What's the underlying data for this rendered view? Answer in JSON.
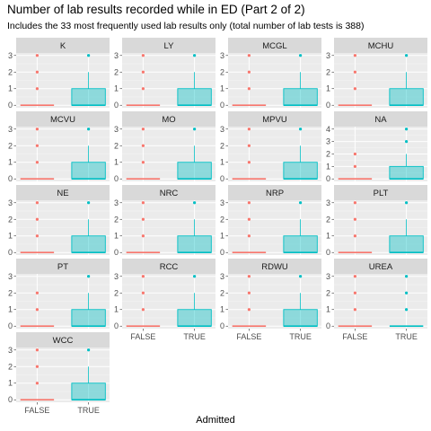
{
  "title": "Number of lab results recorded while in ED (Part 2 of 2)",
  "subtitle": "Includes the 33 most frequently used lab results only (total number of lab tests is 388)",
  "chart_data": {
    "type": "boxplot",
    "xlabel": "Admitted",
    "ylabel": "",
    "categories": [
      "FALSE",
      "TRUE"
    ],
    "colors": {
      "FALSE": "#F8766D",
      "TRUE": "#00BFC4"
    },
    "grid": true,
    "legend": "none",
    "facets": [
      {
        "label": "K",
        "ylim": [
          0,
          3
        ],
        "yticks": [
          0,
          1,
          2,
          3
        ],
        "boxes": [
          {
            "group": "FALSE",
            "q1": 0,
            "median": 0,
            "q3": 0,
            "whisker_low": 0,
            "whisker_high": 0,
            "outliers": [
              1,
              2,
              3
            ]
          },
          {
            "group": "TRUE",
            "q1": 0,
            "median": 0,
            "q3": 1,
            "whisker_low": 0,
            "whisker_high": 2,
            "outliers": [
              3
            ]
          }
        ]
      },
      {
        "label": "LY",
        "ylim": [
          0,
          3
        ],
        "yticks": [
          0,
          1,
          2,
          3
        ],
        "boxes": [
          {
            "group": "FALSE",
            "q1": 0,
            "median": 0,
            "q3": 0,
            "whisker_low": 0,
            "whisker_high": 0,
            "outliers": [
              1,
              2,
              3
            ]
          },
          {
            "group": "TRUE",
            "q1": 0,
            "median": 0,
            "q3": 1,
            "whisker_low": 0,
            "whisker_high": 2,
            "outliers": [
              3
            ]
          }
        ]
      },
      {
        "label": "MCGL",
        "ylim": [
          0,
          3
        ],
        "yticks": [
          0,
          1,
          2,
          3
        ],
        "boxes": [
          {
            "group": "FALSE",
            "q1": 0,
            "median": 0,
            "q3": 0,
            "whisker_low": 0,
            "whisker_high": 0,
            "outliers": [
              1,
              2,
              3
            ]
          },
          {
            "group": "TRUE",
            "q1": 0,
            "median": 0,
            "q3": 1,
            "whisker_low": 0,
            "whisker_high": 2,
            "outliers": [
              3
            ]
          }
        ]
      },
      {
        "label": "MCHU",
        "ylim": [
          0,
          3
        ],
        "yticks": [
          0,
          1,
          2,
          3
        ],
        "boxes": [
          {
            "group": "FALSE",
            "q1": 0,
            "median": 0,
            "q3": 0,
            "whisker_low": 0,
            "whisker_high": 0,
            "outliers": [
              1,
              2,
              3
            ]
          },
          {
            "group": "TRUE",
            "q1": 0,
            "median": 0,
            "q3": 1,
            "whisker_low": 0,
            "whisker_high": 2,
            "outliers": [
              3
            ]
          }
        ]
      },
      {
        "label": "MCVU",
        "ylim": [
          0,
          3
        ],
        "yticks": [
          0,
          1,
          2,
          3
        ],
        "boxes": [
          {
            "group": "FALSE",
            "q1": 0,
            "median": 0,
            "q3": 0,
            "whisker_low": 0,
            "whisker_high": 0,
            "outliers": [
              1,
              2,
              3
            ]
          },
          {
            "group": "TRUE",
            "q1": 0,
            "median": 0,
            "q3": 1,
            "whisker_low": 0,
            "whisker_high": 2,
            "outliers": [
              3
            ]
          }
        ]
      },
      {
        "label": "MO",
        "ylim": [
          0,
          3
        ],
        "yticks": [
          0,
          1,
          2,
          3
        ],
        "boxes": [
          {
            "group": "FALSE",
            "q1": 0,
            "median": 0,
            "q3": 0,
            "whisker_low": 0,
            "whisker_high": 0,
            "outliers": [
              1,
              2,
              3
            ]
          },
          {
            "group": "TRUE",
            "q1": 0,
            "median": 0,
            "q3": 1,
            "whisker_low": 0,
            "whisker_high": 2,
            "outliers": [
              3
            ]
          }
        ]
      },
      {
        "label": "MPVU",
        "ylim": [
          0,
          3
        ],
        "yticks": [
          0,
          1,
          2,
          3
        ],
        "boxes": [
          {
            "group": "FALSE",
            "q1": 0,
            "median": 0,
            "q3": 0,
            "whisker_low": 0,
            "whisker_high": 0,
            "outliers": [
              1,
              2,
              3
            ]
          },
          {
            "group": "TRUE",
            "q1": 0,
            "median": 0,
            "q3": 1,
            "whisker_low": 0,
            "whisker_high": 2,
            "outliers": [
              3
            ]
          }
        ]
      },
      {
        "label": "NA",
        "ylim": [
          0,
          4
        ],
        "yticks": [
          0,
          1,
          2,
          3,
          4
        ],
        "boxes": [
          {
            "group": "FALSE",
            "q1": 0,
            "median": 0,
            "q3": 0,
            "whisker_low": 0,
            "whisker_high": 0,
            "outliers": [
              1,
              2
            ]
          },
          {
            "group": "TRUE",
            "q1": 0,
            "median": 0,
            "q3": 1,
            "whisker_low": 0,
            "whisker_high": 2,
            "outliers": [
              3,
              4
            ]
          }
        ]
      },
      {
        "label": "NE",
        "ylim": [
          0,
          3
        ],
        "yticks": [
          0,
          1,
          2,
          3
        ],
        "boxes": [
          {
            "group": "FALSE",
            "q1": 0,
            "median": 0,
            "q3": 0,
            "whisker_low": 0,
            "whisker_high": 0,
            "outliers": [
              1,
              2,
              3
            ]
          },
          {
            "group": "TRUE",
            "q1": 0,
            "median": 0,
            "q3": 1,
            "whisker_low": 0,
            "whisker_high": 2,
            "outliers": [
              3
            ]
          }
        ]
      },
      {
        "label": "NRC",
        "ylim": [
          0,
          3
        ],
        "yticks": [
          0,
          1,
          2,
          3
        ],
        "boxes": [
          {
            "group": "FALSE",
            "q1": 0,
            "median": 0,
            "q3": 0,
            "whisker_low": 0,
            "whisker_high": 0,
            "outliers": [
              1,
              2,
              3
            ]
          },
          {
            "group": "TRUE",
            "q1": 0,
            "median": 0,
            "q3": 1,
            "whisker_low": 0,
            "whisker_high": 2,
            "outliers": [
              3
            ]
          }
        ]
      },
      {
        "label": "NRP",
        "ylim": [
          0,
          3
        ],
        "yticks": [
          0,
          1,
          2,
          3
        ],
        "boxes": [
          {
            "group": "FALSE",
            "q1": 0,
            "median": 0,
            "q3": 0,
            "whisker_low": 0,
            "whisker_high": 0,
            "outliers": [
              1,
              2,
              3
            ]
          },
          {
            "group": "TRUE",
            "q1": 0,
            "median": 0,
            "q3": 1,
            "whisker_low": 0,
            "whisker_high": 2,
            "outliers": [
              3
            ]
          }
        ]
      },
      {
        "label": "PLT",
        "ylim": [
          0,
          3
        ],
        "yticks": [
          0,
          1,
          2,
          3
        ],
        "boxes": [
          {
            "group": "FALSE",
            "q1": 0,
            "median": 0,
            "q3": 0,
            "whisker_low": 0,
            "whisker_high": 0,
            "outliers": [
              1,
              2,
              3
            ]
          },
          {
            "group": "TRUE",
            "q1": 0,
            "median": 0,
            "q3": 1,
            "whisker_low": 0,
            "whisker_high": 2,
            "outliers": [
              3
            ]
          }
        ]
      },
      {
        "label": "PT",
        "ylim": [
          0,
          3
        ],
        "yticks": [
          0,
          1,
          2,
          3
        ],
        "boxes": [
          {
            "group": "FALSE",
            "q1": 0,
            "median": 0,
            "q3": 0,
            "whisker_low": 0,
            "whisker_high": 0,
            "outliers": [
              1,
              2
            ]
          },
          {
            "group": "TRUE",
            "q1": 0,
            "median": 0,
            "q3": 1,
            "whisker_low": 0,
            "whisker_high": 2,
            "outliers": [
              3
            ]
          }
        ]
      },
      {
        "label": "RCC",
        "ylim": [
          0,
          3
        ],
        "yticks": [
          0,
          1,
          2,
          3
        ],
        "boxes": [
          {
            "group": "FALSE",
            "q1": 0,
            "median": 0,
            "q3": 0,
            "whisker_low": 0,
            "whisker_high": 0,
            "outliers": [
              1,
              2,
              3
            ]
          },
          {
            "group": "TRUE",
            "q1": 0,
            "median": 0,
            "q3": 1,
            "whisker_low": 0,
            "whisker_high": 2,
            "outliers": [
              3
            ]
          }
        ]
      },
      {
        "label": "RDWU",
        "ylim": [
          0,
          3
        ],
        "yticks": [
          0,
          1,
          2,
          3
        ],
        "boxes": [
          {
            "group": "FALSE",
            "q1": 0,
            "median": 0,
            "q3": 0,
            "whisker_low": 0,
            "whisker_high": 0,
            "outliers": [
              1,
              2,
              3
            ]
          },
          {
            "group": "TRUE",
            "q1": 0,
            "median": 0,
            "q3": 1,
            "whisker_low": 0,
            "whisker_high": 2,
            "outliers": [
              3
            ]
          }
        ]
      },
      {
        "label": "UREA",
        "ylim": [
          0,
          3
        ],
        "yticks": [
          0,
          1,
          2,
          3
        ],
        "boxes": [
          {
            "group": "FALSE",
            "q1": 0,
            "median": 0,
            "q3": 0,
            "whisker_low": 0,
            "whisker_high": 0,
            "outliers": [
              1,
              2,
              3
            ]
          },
          {
            "group": "TRUE",
            "q1": 0,
            "median": 0,
            "q3": 0,
            "whisker_low": 0,
            "whisker_high": 0,
            "outliers": [
              1,
              2,
              3
            ]
          }
        ]
      },
      {
        "label": "WCC",
        "ylim": [
          0,
          3
        ],
        "yticks": [
          0,
          1,
          2,
          3
        ],
        "boxes": [
          {
            "group": "FALSE",
            "q1": 0,
            "median": 0,
            "q3": 0,
            "whisker_low": 0,
            "whisker_high": 0,
            "outliers": [
              1,
              2,
              3
            ]
          },
          {
            "group": "TRUE",
            "q1": 0,
            "median": 0,
            "q3": 1,
            "whisker_low": 0,
            "whisker_high": 2,
            "outliers": [
              3
            ]
          }
        ]
      }
    ]
  }
}
